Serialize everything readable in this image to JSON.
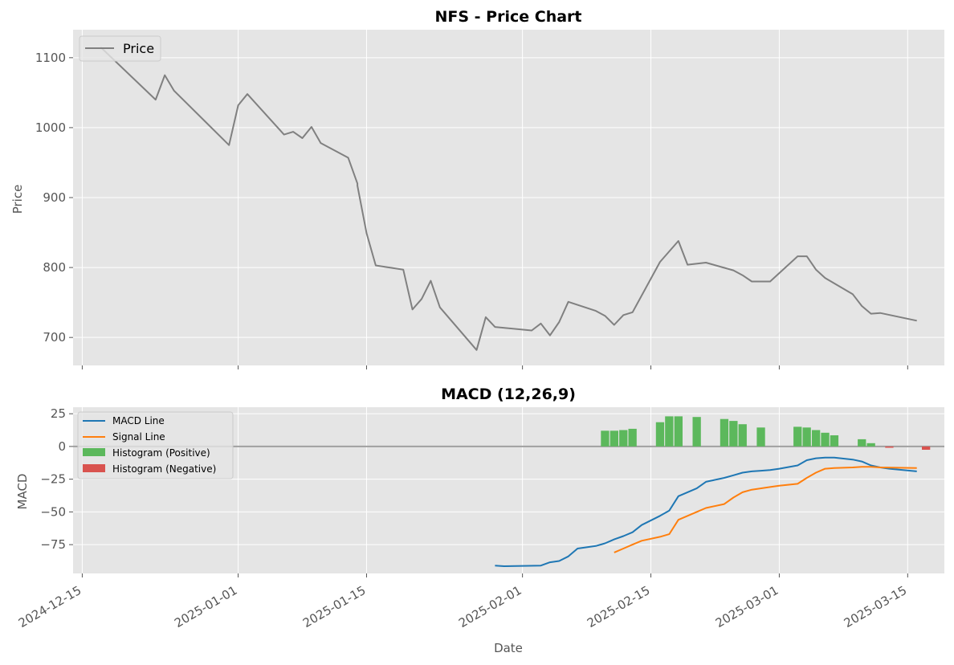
{
  "chart_data": [
    {
      "type": "line",
      "title": "NFS - Price Chart",
      "xlabel": "",
      "ylabel": "Price",
      "xlim": [
        "2024-12-14",
        "2025-03-19"
      ],
      "ylim": [
        660,
        1140
      ],
      "yticks": [
        700,
        800,
        900,
        1000,
        1100
      ],
      "grid": true,
      "legend": "top-left",
      "series": [
        {
          "name": "Price",
          "color": "#808080",
          "x": [
            "2024-12-17",
            "2024-12-23",
            "2024-12-24",
            "2024-12-25",
            "2024-12-31",
            "2025-01-01",
            "2025-01-02",
            "2025-01-06",
            "2025-01-07",
            "2025-01-08",
            "2025-01-09",
            "2025-01-10",
            "2025-01-13",
            "2025-01-14",
            "2025-01-14",
            "2025-01-15",
            "2025-01-16",
            "2025-01-19",
            "2025-01-20",
            "2025-01-21",
            "2025-01-22",
            "2025-01-23",
            "2025-01-27",
            "2025-01-28",
            "2025-01-29",
            "2025-02-02",
            "2025-02-03",
            "2025-02-04",
            "2025-02-05",
            "2025-02-06",
            "2025-02-09",
            "2025-02-10",
            "2025-02-11",
            "2025-02-12",
            "2025-02-13",
            "2025-02-16",
            "2025-02-18",
            "2025-02-19",
            "2025-02-21",
            "2025-02-24",
            "2025-02-25",
            "2025-02-26",
            "2025-02-28",
            "2025-03-03",
            "2025-03-04",
            "2025-03-05",
            "2025-03-06",
            "2025-03-09",
            "2025-03-10",
            "2025-03-11",
            "2025-03-12",
            "2025-03-16"
          ],
          "y": [
            1115,
            1040,
            1075,
            1053,
            975,
            1032,
            1048,
            990,
            994,
            985,
            1001,
            978,
            957,
            920,
            917,
            849,
            803,
            797,
            740,
            755,
            781,
            743,
            682,
            729,
            715,
            710,
            720,
            703,
            722,
            751,
            738,
            731,
            718,
            732,
            736,
            808,
            838,
            804,
            807,
            796,
            789,
            780,
            780,
            816,
            816,
            797,
            785,
            762,
            745,
            734,
            735,
            724
          ]
        }
      ]
    },
    {
      "type": "line",
      "title": "MACD (12,26,9)",
      "xlabel": "Date",
      "ylabel": "MACD",
      "xlim": [
        "2024-12-14",
        "2025-03-19"
      ],
      "ylim": [
        -97,
        30
      ],
      "yticks": [
        25,
        0,
        -25,
        -50,
        -75
      ],
      "ytick_labels": [
        "25",
        "0",
        "−25",
        "−50",
        "−75"
      ],
      "xticks": [
        "2024-12-15",
        "2025-01-01",
        "2025-01-15",
        "2025-02-01",
        "2025-02-15",
        "2025-03-01",
        "2025-03-15"
      ],
      "grid": true,
      "legend": "top-left",
      "zero_line": 0,
      "series": [
        {
          "name": "MACD Line",
          "color": "#1f77b4",
          "x": [
            "2025-01-29",
            "2025-01-30",
            "2025-02-03",
            "2025-02-04",
            "2025-02-05",
            "2025-02-06",
            "2025-02-07",
            "2025-02-08",
            "2025-02-09",
            "2025-02-10",
            "2025-02-11",
            "2025-02-12",
            "2025-02-13",
            "2025-02-14",
            "2025-02-16",
            "2025-02-17",
            "2025-02-18",
            "2025-02-20",
            "2025-02-21",
            "2025-02-23",
            "2025-02-24",
            "2025-02-25",
            "2025-02-26",
            "2025-02-27",
            "2025-02-28",
            "2025-03-01",
            "2025-03-03",
            "2025-03-04",
            "2025-03-05",
            "2025-03-06",
            "2025-03-07",
            "2025-03-09",
            "2025-03-10",
            "2025-03-11",
            "2025-03-12",
            "2025-03-13",
            "2025-03-16"
          ],
          "y": [
            -91,
            -91.5,
            -91,
            -88.5,
            -87.5,
            -84,
            -78,
            -77,
            -76,
            -74,
            -71,
            -68.5,
            -65.5,
            -60,
            -53,
            -49,
            -38,
            -32,
            -27,
            -24,
            -22,
            -20,
            -19,
            -18.5,
            -18,
            -17,
            -14.5,
            -10.5,
            -9,
            -8.5,
            -8.5,
            -10,
            -11.5,
            -14.5,
            -16,
            -17,
            -19
          ]
        },
        {
          "name": "Signal Line",
          "color": "#ff7f0e",
          "x": [
            "2025-02-11",
            "2025-02-12",
            "2025-02-13",
            "2025-02-14",
            "2025-02-16",
            "2025-02-17",
            "2025-02-18",
            "2025-02-20",
            "2025-02-21",
            "2025-02-23",
            "2025-02-24",
            "2025-02-25",
            "2025-02-26",
            "2025-02-28",
            "2025-03-01",
            "2025-03-03",
            "2025-03-04",
            "2025-03-05",
            "2025-03-06",
            "2025-03-07",
            "2025-03-09",
            "2025-03-10",
            "2025-03-11",
            "2025-03-12",
            "2025-03-16"
          ],
          "y": [
            -81,
            -78,
            -75,
            -72,
            -69,
            -67,
            -56,
            -50,
            -47,
            -44,
            -39,
            -35,
            -33,
            -31,
            -30,
            -28.5,
            -24,
            -20,
            -17,
            -16.5,
            -16,
            -15.5,
            -15.5,
            -16,
            -16.5
          ]
        }
      ],
      "histogram_positive": {
        "name": "Histogram (Positive)",
        "color": "#5cb85c",
        "x": [
          "2025-02-10",
          "2025-02-11",
          "2025-02-12",
          "2025-02-13",
          "2025-02-16",
          "2025-02-17",
          "2025-02-18",
          "2025-02-20",
          "2025-02-23",
          "2025-02-24",
          "2025-02-25",
          "2025-02-27",
          "2025-03-03",
          "2025-03-04",
          "2025-03-05",
          "2025-03-06",
          "2025-03-07",
          "2025-03-10",
          "2025-03-11"
        ],
        "values": [
          12,
          12,
          12.5,
          13.5,
          18.5,
          23,
          23,
          22.5,
          21,
          19.5,
          17,
          14.5,
          15,
          14.5,
          12.5,
          10.5,
          8.5,
          5.5,
          2.5
        ]
      },
      "histogram_negative": {
        "name": "Histogram (Negative)",
        "color": "#d9534f",
        "x": [
          "2025-03-13",
          "2025-03-17"
        ],
        "values": [
          -1,
          -2.5
        ]
      }
    }
  ]
}
